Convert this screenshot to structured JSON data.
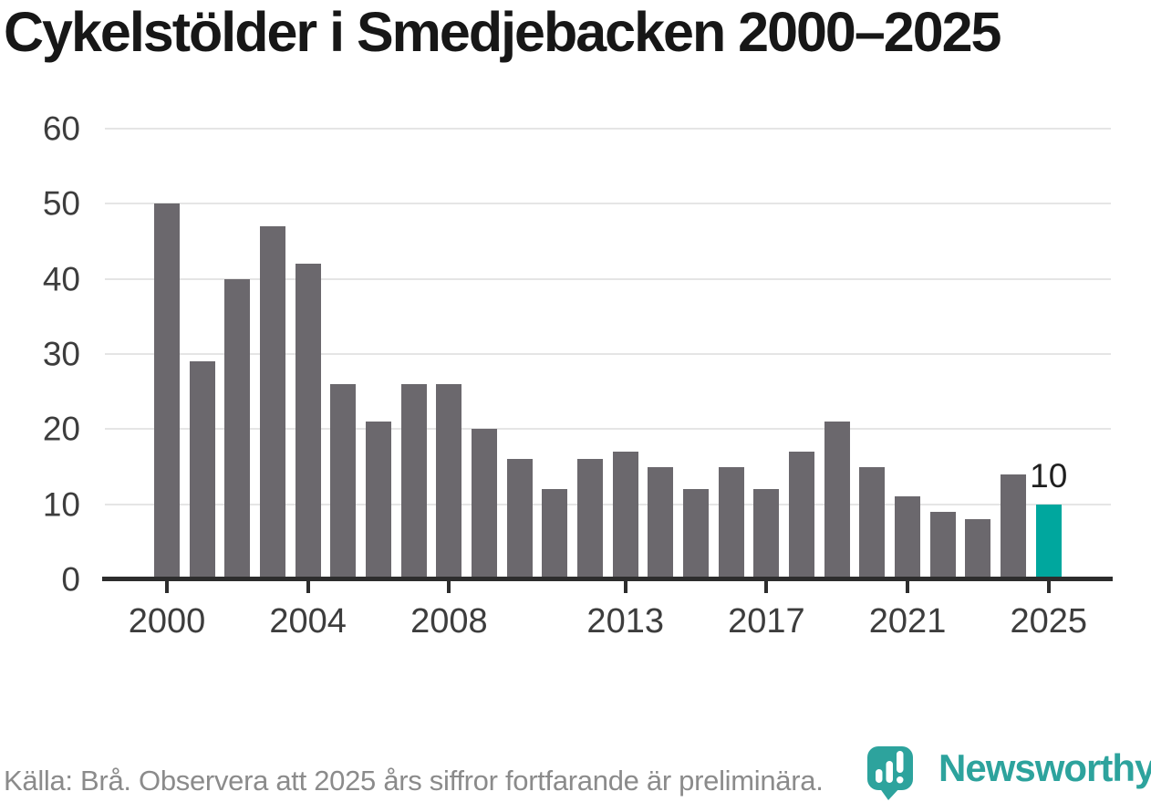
{
  "title": "Cykelstölder i Smedjebacken 2000–2025",
  "footer": {
    "source_note": "Källa: Brå. Observera att 2025 års siffror fortfarande är preliminära."
  },
  "branding": {
    "wordmark": "Newsworthy",
    "logo_icon": "newsworthy-pin-barchart-icon"
  },
  "colors": {
    "bar": "#6b686d",
    "accent_bar": "#00a79e",
    "grid": "#e5e5e5",
    "axis": "#2d2d2d",
    "title_text": "#171717",
    "tick_label": "#3d3d3d",
    "footer_text": "#8b8b8b",
    "logo_teal": "#2da39d"
  },
  "chart_data": {
    "type": "bar",
    "title": "Cykelstölder i Smedjebacken 2000–2025",
    "categories": [
      2000,
      2001,
      2002,
      2003,
      2004,
      2005,
      2006,
      2007,
      2008,
      2009,
      2010,
      2011,
      2012,
      2013,
      2014,
      2015,
      2016,
      2017,
      2018,
      2019,
      2020,
      2021,
      2022,
      2023,
      2024,
      2025
    ],
    "values": [
      50,
      29,
      40,
      47,
      42,
      26,
      21,
      26,
      26,
      20,
      16,
      12,
      16,
      17,
      15,
      12,
      15,
      12,
      17,
      21,
      15,
      11,
      9,
      8,
      14,
      10
    ],
    "xlabel": "",
    "ylabel": "",
    "ylim": [
      0,
      60
    ],
    "y_ticks": [
      0,
      10,
      20,
      30,
      40,
      50,
      60
    ],
    "x_tick_labels": [
      "2000",
      "2004",
      "2008",
      "2013",
      "2017",
      "2021",
      "2025"
    ],
    "grid": "horizontal",
    "legend": "none",
    "highlight": {
      "index": 25,
      "category": 2025,
      "value_label": "10"
    }
  }
}
